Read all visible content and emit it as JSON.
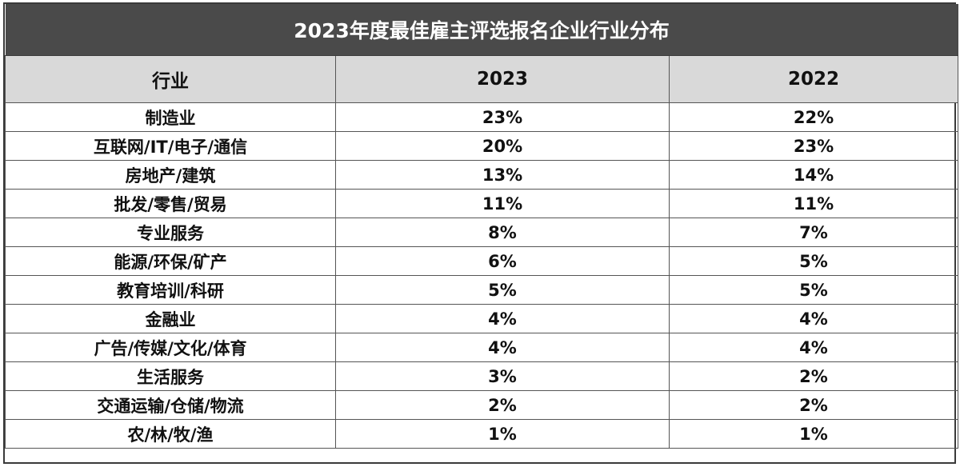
{
  "table": {
    "title": "2023年度最佳雇主评选报名企业行业分布",
    "headers": [
      "行业",
      "2023",
      "2022"
    ],
    "rows": [
      [
        "制造业",
        "23%",
        "22%"
      ],
      [
        "互联网/IT/电子/通信",
        "20%",
        "23%"
      ],
      [
        "房地产/建筑",
        "13%",
        "14%"
      ],
      [
        "批发/零售/贸易",
        "11%",
        "11%"
      ],
      [
        "专业服务",
        "8%",
        "7%"
      ],
      [
        "能源/环保/矿产",
        "6%",
        "5%"
      ],
      [
        "教育培训/科研",
        "5%",
        "5%"
      ],
      [
        "金融业",
        "4%",
        "4%"
      ],
      [
        "广告/传媒/文化/体育",
        "4%",
        "4%"
      ],
      [
        "生活服务",
        "3%",
        "2%"
      ],
      [
        "交通运输/仓储/物流",
        "2%",
        "2%"
      ],
      [
        "农/林/牧/渔",
        "1%",
        "1%"
      ]
    ],
    "colors": {
      "title_bg": "#4a4a4a",
      "title_text": "#ffffff",
      "header_bg": "#d9d9d9",
      "border": "#555555"
    }
  }
}
